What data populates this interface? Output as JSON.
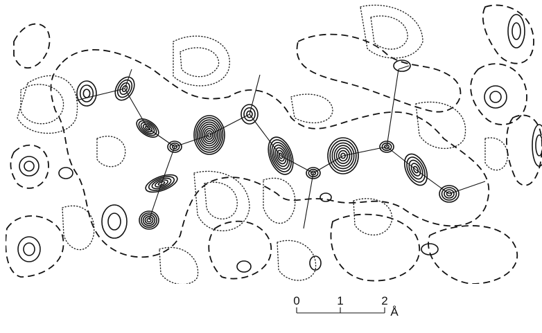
{
  "scale_bar": {
    "ticks": [
      "0",
      "1",
      "2"
    ],
    "unit": "Å"
  }
}
